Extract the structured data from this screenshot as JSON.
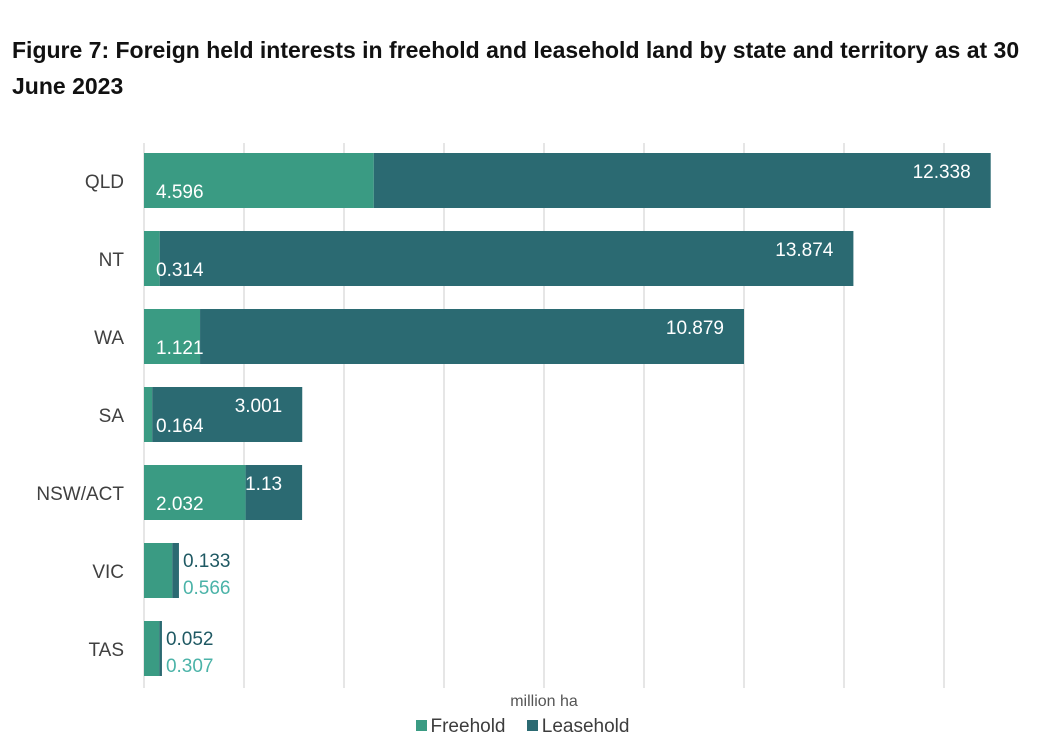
{
  "page": {
    "title": "Figure 7: Foreign held interests in freehold and leasehold land by state and territory as at 30 June 2023"
  },
  "colors": {
    "freehold": "#3a9b83",
    "leasehold": "#2b6a72",
    "freehold_label_outside": "#4bb3a8",
    "leasehold_label_outside": "#1f5963",
    "grid": "#d9d9d9",
    "tick_text": "#404040"
  },
  "legend": {
    "freehold": "Freehold",
    "leasehold": "Leasehold"
  },
  "chart_data": {
    "type": "bar",
    "orientation": "horizontal",
    "stacked": true,
    "title": "Figure 7: Foreign held interests in freehold and leasehold land by state and territory as at 30 June 2023",
    "xlabel": "million ha",
    "ylabel": "",
    "xlim": [
      0,
      17
    ],
    "grid": true,
    "legend_position": "bottom",
    "categories": [
      "QLD",
      "NT",
      "WA",
      "SA",
      "NSW/ACT",
      "VIC",
      "TAS"
    ],
    "series": [
      {
        "name": "Freehold",
        "values": [
          4.596,
          0.314,
          1.121,
          0.164,
          2.032,
          0.566,
          0.307
        ]
      },
      {
        "name": "Leasehold",
        "values": [
          12.338,
          13.874,
          10.879,
          3.001,
          1.13,
          0.133,
          0.052
        ]
      }
    ],
    "data_labels": {
      "freehold": [
        "4.596",
        "0.314",
        "1.121",
        "0.164",
        "2.032",
        "0.566",
        "0.307"
      ],
      "leasehold": [
        "12.338",
        "13.874",
        "10.879",
        "3.001",
        "1.13",
        "0.133",
        "0.052"
      ]
    }
  }
}
